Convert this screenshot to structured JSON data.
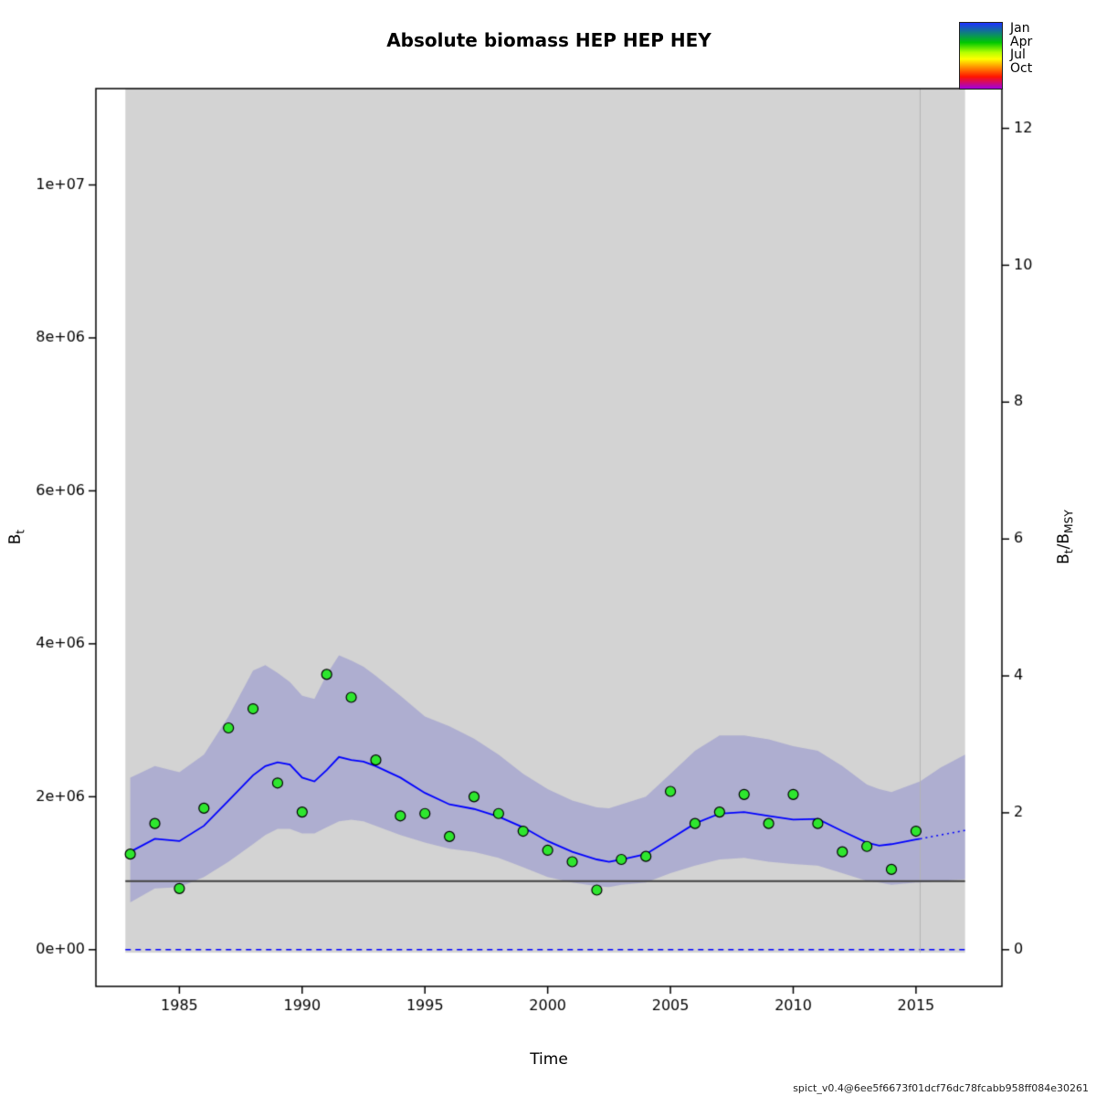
{
  "labels": {
    "left_base": "B",
    "left_sub": "t",
    "right_base1": "B",
    "right_sub1": "t",
    "right_slash": "/",
    "right_base2": "B",
    "right_sub2": "MSY"
  },
  "legend": {
    "months": [
      "Jan",
      "Apr",
      "Jul",
      "Oct"
    ],
    "colors": [
      "#1e32ff 0%",
      "#00c800 30%",
      "#b4ff00 45%",
      "#ffff00 55%",
      "#ff8c00 68%",
      "#ff1400 82%",
      "#a000dc 100%"
    ]
  },
  "footer": {
    "version": "spict_v0.4@6ee5f6673f01dcf76dc78fcabb958ff084e30261"
  },
  "chart_data": {
    "type": "line",
    "title": "Absolute biomass HEP HEP HEY",
    "xlabel": "Time",
    "ylabel_left": "Bt",
    "ylabel_right": "Bt/BMSY",
    "x_ticks": [
      1985,
      1990,
      1995,
      2000,
      2005,
      2010,
      2015
    ],
    "y_ticks_left": {
      "labels": [
        "0e+00",
        "2e+06",
        "4e+06",
        "6e+06",
        "8e+06",
        "1e+07"
      ],
      "values": [
        0,
        2000000,
        4000000,
        6000000,
        8000000,
        10000000
      ]
    },
    "y_ticks_right": {
      "labels": [
        "0",
        "2",
        "4",
        "6",
        "8",
        "10",
        "12"
      ],
      "values": [
        0,
        2,
        4,
        6,
        8,
        10,
        12
      ]
    },
    "axis_ranges": {
      "x": [
        1981.6,
        2018.5
      ],
      "y_left": [
        -480000,
        11260000
      ]
    },
    "data_window": [
      1982.8,
      2017.0
    ],
    "bmsy": 895000,
    "vline_x": 2015.17,
    "estimate": {
      "x": [
        1983,
        1984,
        1985,
        1986,
        1987,
        1988,
        1988.5,
        1989,
        1989.5,
        1990,
        1990.5,
        1991,
        1991.5,
        1992,
        1992.5,
        1993,
        1994,
        1995,
        1996,
        1997,
        1998,
        1999,
        2000,
        2001,
        2002,
        2002.5,
        2003,
        2004,
        2005,
        2006,
        2007,
        2008,
        2009,
        2010,
        2011,
        2012,
        2013,
        2013.5,
        2014,
        2015,
        2015.17
      ],
      "y": [
        1280000,
        1450000,
        1420000,
        1620000,
        1950000,
        2280000,
        2400000,
        2450000,
        2420000,
        2250000,
        2200000,
        2350000,
        2520000,
        2480000,
        2460000,
        2400000,
        2250000,
        2050000,
        1900000,
        1840000,
        1740000,
        1600000,
        1420000,
        1280000,
        1180000,
        1150000,
        1180000,
        1250000,
        1450000,
        1650000,
        1780000,
        1800000,
        1750000,
        1700000,
        1710000,
        1550000,
        1400000,
        1360000,
        1380000,
        1440000,
        1450000
      ]
    },
    "forecast": {
      "x": [
        2015.17,
        2016,
        2017
      ],
      "y": [
        1450000,
        1500000,
        1560000
      ]
    },
    "band": {
      "x": [
        1983,
        1984,
        1985,
        1986,
        1987,
        1988,
        1988.5,
        1989,
        1989.5,
        1990,
        1990.5,
        1991,
        1991.5,
        1992,
        1992.5,
        1993,
        1994,
        1995,
        1996,
        1997,
        1998,
        1999,
        2000,
        2001,
        2002,
        2002.5,
        2003,
        2004,
        2005,
        2006,
        2007,
        2008,
        2009,
        2010,
        2011,
        2012,
        2013,
        2013.5,
        2014,
        2015,
        2015.17,
        2016,
        2017
      ],
      "lower": [
        620000,
        800000,
        820000,
        950000,
        1150000,
        1380000,
        1500000,
        1580000,
        1580000,
        1520000,
        1520000,
        1600000,
        1680000,
        1700000,
        1680000,
        1620000,
        1500000,
        1400000,
        1320000,
        1280000,
        1200000,
        1080000,
        950000,
        880000,
        830000,
        820000,
        850000,
        880000,
        1000000,
        1100000,
        1180000,
        1200000,
        1150000,
        1120000,
        1100000,
        1000000,
        900000,
        880000,
        850000,
        880000,
        880000,
        900000,
        920000
      ],
      "upper": [
        2250000,
        2400000,
        2320000,
        2550000,
        3050000,
        3650000,
        3720000,
        3620000,
        3500000,
        3320000,
        3280000,
        3600000,
        3850000,
        3780000,
        3700000,
        3580000,
        3320000,
        3050000,
        2920000,
        2760000,
        2550000,
        2300000,
        2100000,
        1950000,
        1860000,
        1850000,
        1900000,
        2000000,
        2300000,
        2600000,
        2800000,
        2800000,
        2750000,
        2660000,
        2600000,
        2400000,
        2160000,
        2100000,
        2060000,
        2180000,
        2200000,
        2380000,
        2550000
      ]
    },
    "observations": {
      "x": [
        1983,
        1984,
        1985,
        1986,
        1987,
        1988,
        1989,
        1990,
        1991,
        1992,
        1993,
        1994,
        1995,
        1996,
        1997,
        1998,
        1999,
        2000,
        2001,
        2002,
        2003,
        2004,
        2005,
        2006,
        2007,
        2008,
        2009,
        2010,
        2011,
        2012,
        2013,
        2014,
        2015
      ],
      "y": [
        1250000,
        1650000,
        800000,
        1850000,
        2900000,
        3150000,
        2180000,
        1800000,
        3600000,
        3300000,
        2480000,
        1750000,
        1780000,
        1480000,
        2000000,
        1780000,
        1550000,
        1300000,
        1150000,
        780000,
        1180000,
        1220000,
        2070000,
        1650000,
        1800000,
        2030000,
        1650000,
        2030000,
        1650000,
        1280000,
        1350000,
        1050000,
        1550000
      ]
    },
    "colors": {
      "region_fill": "#d3d3d3",
      "band_fill": "#5050c8",
      "band_alpha": 0.28,
      "estimate_line": "#0000ff",
      "forecast_line": "#0000ff",
      "zero_line": "#0000ff",
      "bmsy_line": "#404040",
      "vline": "#b4b4b4",
      "observation_fill": "#2ee62e",
      "observation_stroke": "#000000",
      "frame": "#000000"
    }
  }
}
